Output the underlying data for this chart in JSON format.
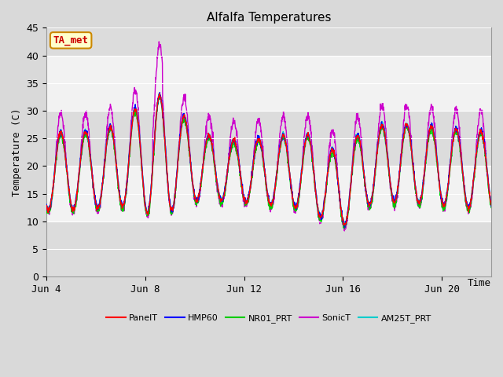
{
  "title": "Alfalfa Temperatures",
  "ylabel": "Temperature (C)",
  "xlabel": "Time",
  "ylim": [
    0,
    45
  ],
  "yticks": [
    0,
    5,
    10,
    15,
    20,
    25,
    30,
    35,
    40,
    45
  ],
  "xtick_labels": [
    "Jun 4",
    "Jun 8",
    "Jun 12",
    "Jun 16",
    "Jun 20"
  ],
  "xtick_positions": [
    0,
    4,
    8,
    12,
    16
  ],
  "annotation_text": "TA_met",
  "annotation_bg": "#ffffcc",
  "annotation_border": "#cc8800",
  "annotation_text_color": "#cc0000",
  "fig_bg": "#d9d9d9",
  "plot_bg_light": "#f2f2f2",
  "plot_bg_dark": "#dcdcdc",
  "series_colors": {
    "PanelT": "#ff0000",
    "HMP60": "#0000ff",
    "NR01_PRT": "#00cc00",
    "SonicT": "#cc00cc",
    "AM25T_PRT": "#00cccc"
  },
  "n_days": 18,
  "samples_per_day": 96,
  "band_ranges": [
    [
      0,
      10
    ],
    [
      10,
      20
    ],
    [
      20,
      30
    ],
    [
      30,
      40
    ],
    [
      40,
      45
    ]
  ],
  "band_colors": [
    "#dcdcdc",
    "#f2f2f2",
    "#dcdcdc",
    "#f2f2f2",
    "#dcdcdc"
  ]
}
